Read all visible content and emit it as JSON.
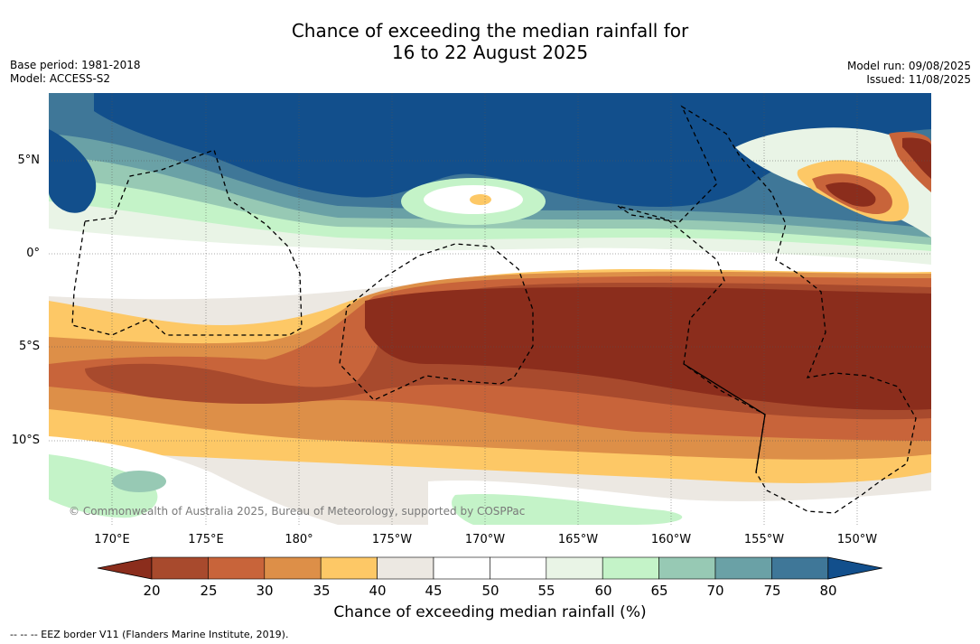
{
  "title_line1": "Chance of exceeding the median rainfall for",
  "title_line2": "16 to 22 August 2025",
  "base_period": "Base period: 1981-2018",
  "model": "Model: ACCESS-S2",
  "model_run": "Model run: 09/08/2025",
  "issued": "Issued: 11/08/2025",
  "lat_labels": [
    "5°N",
    "0°",
    "5°S",
    "10°S"
  ],
  "lon_labels": [
    "170°E",
    "175°E",
    "180°",
    "175°W",
    "170°W",
    "165°W",
    "160°W",
    "155°W",
    "150°W"
  ],
  "copyright": "© Commonwealth of Australia 2025, Bureau of Meteorology, supported by COSPPac",
  "colorbar": {
    "title": "Chance of exceeding median rainfall (%)",
    "ticks": [
      "20",
      "25",
      "30",
      "35",
      "40",
      "45",
      "50",
      "55",
      "60",
      "65",
      "70",
      "75",
      "80"
    ],
    "colors": [
      "#8b2d1c",
      "#a84a2d",
      "#c8643a",
      "#dd8f48",
      "#fdc866",
      "#ece8e2",
      "#ffffff",
      "#ffffff",
      "#e9f4e6",
      "#c4f3c8",
      "#97c9b4",
      "#6aa1a6",
      "#3f7798",
      "#124f8c"
    ]
  },
  "eez_note": "-- -- -- EEZ border V11 (Flanders Marine Institute, 2019)."
}
